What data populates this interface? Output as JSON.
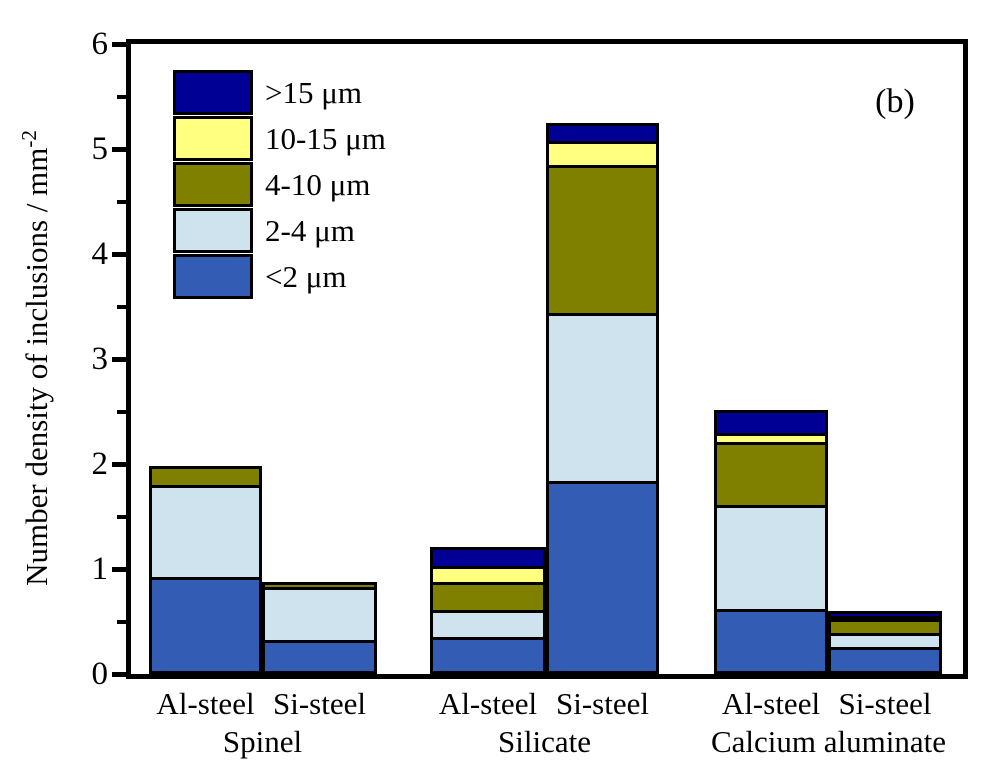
{
  "annotation": "(b)",
  "ylabel": {
    "text": "Number density of inclusions / mm",
    "sup": "-2"
  },
  "chart_data": {
    "type": "bar",
    "stacked": true,
    "title": "",
    "xlabel": "",
    "ylabel": "Number density of inclusions / mm^-2",
    "ylim": [
      0,
      6
    ],
    "ytick_step": 1,
    "ytick_minor_step": 0.5,
    "grid": false,
    "legend_position": "top-left-inside",
    "legend_order_top_to_bottom": [
      ">15 μm",
      "10-15 μm",
      "4-10 μm",
      "2-4 μm",
      "<2 μm"
    ],
    "categories": [
      "Al-steel",
      "Si-steel",
      "Al-steel",
      "Si-steel",
      "Al-steel",
      "Si-steel"
    ],
    "group_labels": [
      "Spinel",
      "Silicate",
      "Calcium aluminate"
    ],
    "series": [
      {
        "name": "<2 μm",
        "color": "#335CB4",
        "values": [
          0.87,
          0.27,
          0.3,
          1.78,
          0.56,
          0.2
        ]
      },
      {
        "name": "2-4 μm",
        "color": "#CEE3EE",
        "values": [
          0.87,
          0.5,
          0.25,
          1.6,
          0.99,
          0.13
        ]
      },
      {
        "name": "4-10 μm",
        "color": "#808000",
        "values": [
          0.18,
          0.05,
          0.27,
          1.41,
          0.6,
          0.14
        ]
      },
      {
        "name": "10-15 μm",
        "color": "#FFFF80",
        "values": [
          0,
          0,
          0.15,
          0.23,
          0.09,
          0.03
        ]
      },
      {
        "name": ">15 μm",
        "color": "#000095",
        "values": [
          0,
          0,
          0.18,
          0.17,
          0.22,
          0.04
        ]
      }
    ],
    "bar_totals": [
      1.92,
      0.82,
      1.15,
      5.19,
      2.46,
      0.54
    ],
    "yticks": [
      0,
      1,
      2,
      3,
      4,
      5,
      6
    ],
    "axis_color": "#000000"
  }
}
